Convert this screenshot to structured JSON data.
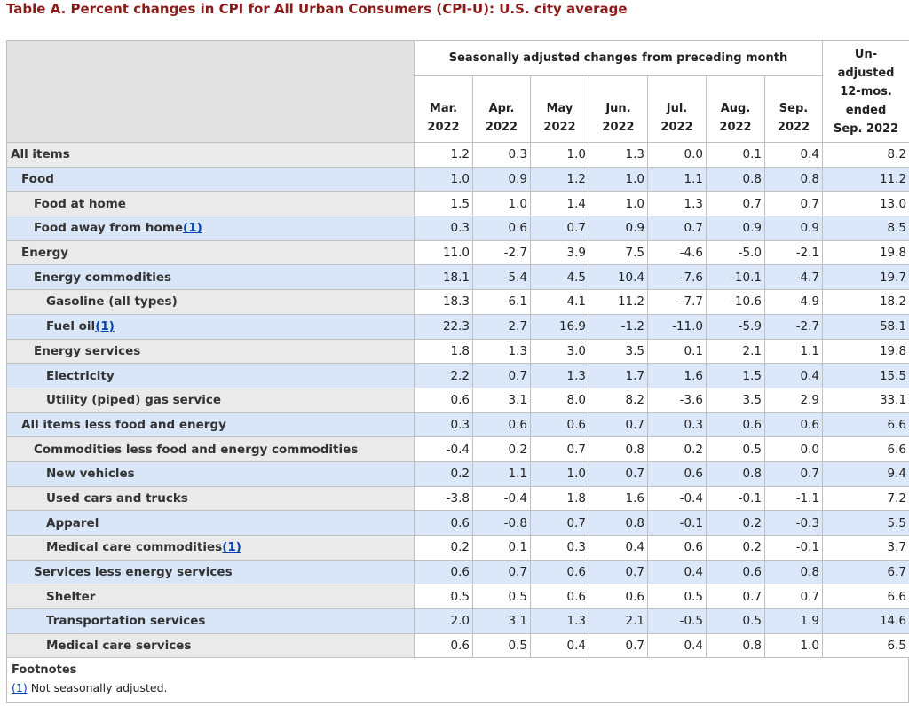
{
  "title": "Table A. Percent changes in CPI for All Urban Consumers (CPI-U): U.S. city average",
  "header": {
    "group_label": "Seasonally adjusted changes from preceding month",
    "months": [
      {
        "m": "Mar.",
        "y": "2022"
      },
      {
        "m": "Apr.",
        "y": "2022"
      },
      {
        "m": "May",
        "y": "2022"
      },
      {
        "m": "Jun.",
        "y": "2022"
      },
      {
        "m": "Jul.",
        "y": "2022"
      },
      {
        "m": "Aug.",
        "y": "2022"
      },
      {
        "m": "Sep.",
        "y": "2022"
      }
    ],
    "unadjusted_lines": [
      "Un-",
      "adjusted",
      "12-mos.",
      "ended",
      "Sep. 2022"
    ]
  },
  "rows": [
    {
      "label": "All items",
      "level": 0,
      "fn": "",
      "values": [
        "1.2",
        "0.3",
        "1.0",
        "1.3",
        "0.0",
        "0.1",
        "0.4",
        "8.2"
      ]
    },
    {
      "label": "Food",
      "level": 1,
      "fn": "",
      "values": [
        "1.0",
        "0.9",
        "1.2",
        "1.0",
        "1.1",
        "0.8",
        "0.8",
        "11.2"
      ]
    },
    {
      "label": "Food at home",
      "level": 2,
      "fn": "",
      "values": [
        "1.5",
        "1.0",
        "1.4",
        "1.0",
        "1.3",
        "0.7",
        "0.7",
        "13.0"
      ]
    },
    {
      "label": "Food away from home",
      "level": 2,
      "fn": "(1)",
      "values": [
        "0.3",
        "0.6",
        "0.7",
        "0.9",
        "0.7",
        "0.9",
        "0.9",
        "8.5"
      ]
    },
    {
      "label": "Energy",
      "level": 1,
      "fn": "",
      "values": [
        "11.0",
        "-2.7",
        "3.9",
        "7.5",
        "-4.6",
        "-5.0",
        "-2.1",
        "19.8"
      ]
    },
    {
      "label": "Energy commodities",
      "level": 2,
      "fn": "",
      "values": [
        "18.1",
        "-5.4",
        "4.5",
        "10.4",
        "-7.6",
        "-10.1",
        "-4.7",
        "19.7"
      ]
    },
    {
      "label": "Gasoline (all types)",
      "level": 3,
      "fn": "",
      "values": [
        "18.3",
        "-6.1",
        "4.1",
        "11.2",
        "-7.7",
        "-10.6",
        "-4.9",
        "18.2"
      ]
    },
    {
      "label": "Fuel oil",
      "level": 3,
      "fn": "(1)",
      "values": [
        "22.3",
        "2.7",
        "16.9",
        "-1.2",
        "-11.0",
        "-5.9",
        "-2.7",
        "58.1"
      ]
    },
    {
      "label": "Energy services",
      "level": 2,
      "fn": "",
      "values": [
        "1.8",
        "1.3",
        "3.0",
        "3.5",
        "0.1",
        "2.1",
        "1.1",
        "19.8"
      ]
    },
    {
      "label": "Electricity",
      "level": 3,
      "fn": "",
      "values": [
        "2.2",
        "0.7",
        "1.3",
        "1.7",
        "1.6",
        "1.5",
        "0.4",
        "15.5"
      ]
    },
    {
      "label": "Utility (piped) gas service",
      "level": 3,
      "fn": "",
      "values": [
        "0.6",
        "3.1",
        "8.0",
        "8.2",
        "-3.6",
        "3.5",
        "2.9",
        "33.1"
      ]
    },
    {
      "label": "All items less food and energy",
      "level": 1,
      "fn": "",
      "values": [
        "0.3",
        "0.6",
        "0.6",
        "0.7",
        "0.3",
        "0.6",
        "0.6",
        "6.6"
      ]
    },
    {
      "label": "Commodities less food and energy commodities",
      "level": 2,
      "fn": "",
      "values": [
        "-0.4",
        "0.2",
        "0.7",
        "0.8",
        "0.2",
        "0.5",
        "0.0",
        "6.6"
      ]
    },
    {
      "label": "New vehicles",
      "level": 3,
      "fn": "",
      "values": [
        "0.2",
        "1.1",
        "1.0",
        "0.7",
        "0.6",
        "0.8",
        "0.7",
        "9.4"
      ]
    },
    {
      "label": "Used cars and trucks",
      "level": 3,
      "fn": "",
      "values": [
        "-3.8",
        "-0.4",
        "1.8",
        "1.6",
        "-0.4",
        "-0.1",
        "-1.1",
        "7.2"
      ]
    },
    {
      "label": "Apparel",
      "level": 3,
      "fn": "",
      "values": [
        "0.6",
        "-0.8",
        "0.7",
        "0.8",
        "-0.1",
        "0.2",
        "-0.3",
        "5.5"
      ]
    },
    {
      "label": "Medical care commodities",
      "level": 3,
      "fn": "(1)",
      "values": [
        "0.2",
        "0.1",
        "0.3",
        "0.4",
        "0.6",
        "0.2",
        "-0.1",
        "3.7"
      ]
    },
    {
      "label": "Services less energy services",
      "level": 2,
      "fn": "",
      "values": [
        "0.6",
        "0.7",
        "0.6",
        "0.7",
        "0.4",
        "0.6",
        "0.8",
        "6.7"
      ]
    },
    {
      "label": "Shelter",
      "level": 3,
      "fn": "",
      "values": [
        "0.5",
        "0.5",
        "0.6",
        "0.6",
        "0.5",
        "0.7",
        "0.7",
        "6.6"
      ]
    },
    {
      "label": "Transportation services",
      "level": 3,
      "fn": "",
      "values": [
        "2.0",
        "3.1",
        "1.3",
        "2.1",
        "-0.5",
        "0.5",
        "1.9",
        "14.6"
      ]
    },
    {
      "label": "Medical care services",
      "level": 3,
      "fn": "",
      "values": [
        "0.6",
        "0.5",
        "0.4",
        "0.7",
        "0.4",
        "0.8",
        "1.0",
        "6.5"
      ]
    }
  ],
  "footnotes": {
    "heading": "Footnotes",
    "items": [
      {
        "marker": "(1)",
        "text": " Not seasonally adjusted."
      }
    ]
  },
  "colors": {
    "title": "#8b1a1a",
    "row_alt": "#dbe8fa",
    "header_blank": "#e2e2e2",
    "link": "#0645ad"
  }
}
